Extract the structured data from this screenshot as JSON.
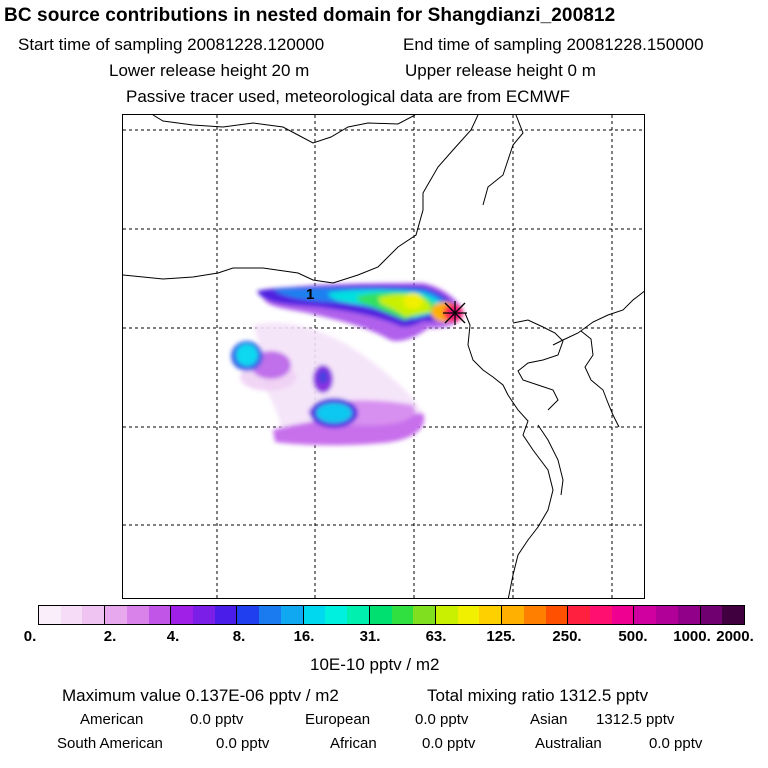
{
  "header": {
    "title": "BC  source contributions in nested domain for Shangdianzi_200812",
    "start_time": "Start time of sampling 20081228.120000",
    "end_time": "End time of sampling 20081228.150000",
    "lower_release": "Lower release height   20 m",
    "upper_release": "Upper release height    0 m",
    "tracer_note": "Passive tracer used, meteorological data are from ECMWF"
  },
  "map": {
    "receptor_marker": "1",
    "station_symbol": "asterisk-icon"
  },
  "colorbar": {
    "colors": [
      "#fbeefb",
      "#f7dcf7",
      "#f0c4f2",
      "#e8a8ee",
      "#d882ea",
      "#c055e8",
      "#a020e8",
      "#7a1ee8",
      "#4a1ee8",
      "#2040f0",
      "#1a7af0",
      "#10a8f0",
      "#00d8f0",
      "#00f0e0",
      "#00f0b0",
      "#00e070",
      "#30e040",
      "#80e020",
      "#c8f000",
      "#f0f000",
      "#ffd000",
      "#ffb000",
      "#ff8000",
      "#ff5000",
      "#ff2040",
      "#ff1070",
      "#f00090",
      "#d000a0",
      "#b00098",
      "#900088",
      "#700070",
      "#400040"
    ],
    "ticks": [
      "0.",
      "2.",
      "4.",
      "8.",
      "16.",
      "31.",
      "63.",
      "125.",
      "250.",
      "500.",
      "1000.",
      "2000."
    ],
    "units": "10E-10 pptv / m2"
  },
  "summary": {
    "maximum": "Maximum value  0.137E-06 pptv / m2",
    "total": "Total mixing ratio     1312.5 pptv",
    "regions": [
      {
        "label": "American",
        "value": "0.0 pptv"
      },
      {
        "label": "European",
        "value": "0.0 pptv"
      },
      {
        "label": "Asian",
        "value": "1312.5 pptv"
      },
      {
        "label": "South American",
        "value": "0.0 pptv"
      },
      {
        "label": "African",
        "value": "0.0 pptv"
      },
      {
        "label": "Australian",
        "value": "0.0 pptv"
      }
    ]
  }
}
